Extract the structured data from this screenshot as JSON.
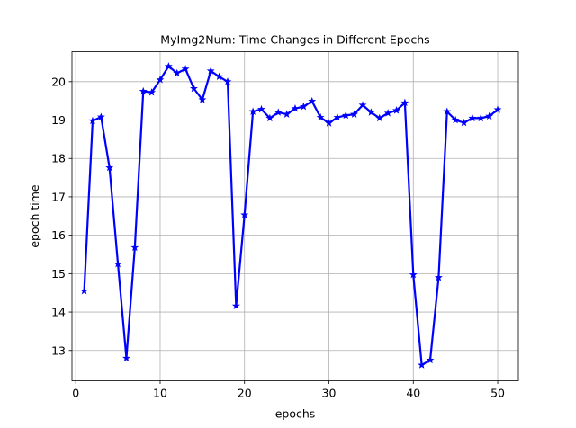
{
  "chart_data": {
    "type": "line",
    "title": "MyImg2Num: Time Changes in Different Epochs",
    "xlabel": "epochs",
    "ylabel": "epoch time",
    "xlim": [
      -0.45,
      52.45
    ],
    "ylim": [
      12.21,
      20.78
    ],
    "xticks": [
      0,
      10,
      20,
      30,
      40,
      50
    ],
    "yticks": [
      13,
      14,
      15,
      16,
      17,
      18,
      19,
      20
    ],
    "grid": true,
    "series": [
      {
        "color": "#0000ff",
        "marker": "star",
        "x": [
          1,
          2,
          3,
          4,
          5,
          6,
          7,
          8,
          9,
          10,
          11,
          12,
          13,
          14,
          15,
          16,
          17,
          18,
          19,
          20,
          21,
          22,
          23,
          24,
          25,
          26,
          27,
          28,
          29,
          30,
          31,
          32,
          33,
          34,
          35,
          36,
          37,
          38,
          39,
          40,
          41,
          42,
          43,
          44,
          45,
          46,
          47,
          48,
          49,
          50
        ],
        "y": [
          14.55,
          18.98,
          19.08,
          17.76,
          15.25,
          12.8,
          15.68,
          19.75,
          19.72,
          20.05,
          20.4,
          20.22,
          20.33,
          19.82,
          19.53,
          20.28,
          20.13,
          20.0,
          14.16,
          16.53,
          19.22,
          19.28,
          19.05,
          19.2,
          19.15,
          19.3,
          19.35,
          19.49,
          19.07,
          18.92,
          19.07,
          19.12,
          19.15,
          19.39,
          19.2,
          19.05,
          19.18,
          19.25,
          19.45,
          14.97,
          12.62,
          12.75,
          14.9,
          19.22,
          19.0,
          18.93,
          19.05,
          19.05,
          19.1,
          19.27
        ]
      }
    ]
  }
}
